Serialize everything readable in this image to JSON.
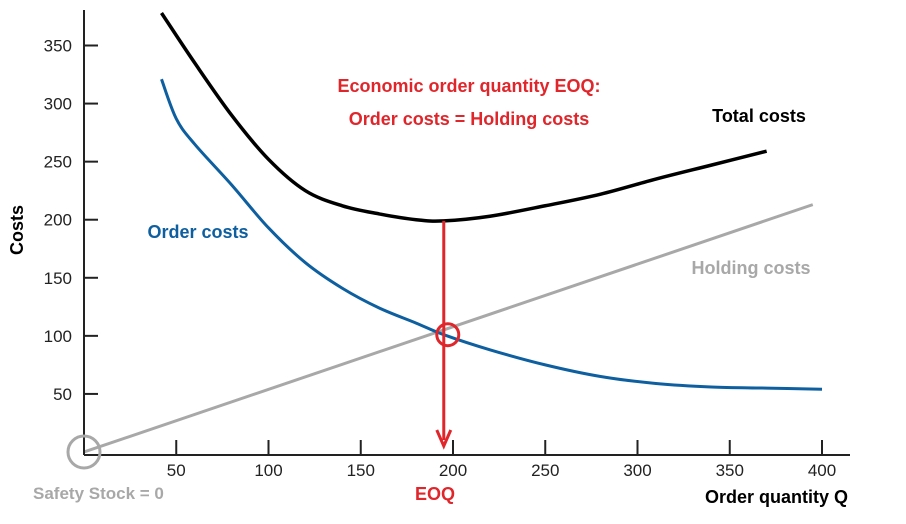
{
  "chart_data": {
    "type": "line",
    "xlabel": "Order quantity Q",
    "ylabel": "Costs",
    "xlim": [
      0,
      400
    ],
    "ylim": [
      0,
      370
    ],
    "xticks": [
      50,
      100,
      150,
      200,
      250,
      300,
      350,
      400
    ],
    "yticks": [
      50,
      100,
      150,
      200,
      250,
      300,
      350
    ],
    "grid": false,
    "series": [
      {
        "name": "Total costs",
        "color": "#000000",
        "x": [
          42,
          60,
          80,
          100,
          120,
          140,
          160,
          180,
          195,
          220,
          250,
          280,
          310,
          340,
          370
        ],
        "y": [
          378,
          335,
          290,
          252,
          225,
          212,
          205,
          200,
          199,
          203,
          212,
          222,
          235,
          247,
          259
        ]
      },
      {
        "name": "Order costs",
        "color": "#0e5fa0",
        "x": [
          42,
          50,
          60,
          80,
          100,
          120,
          140,
          160,
          180,
          195,
          220,
          250,
          280,
          310,
          340,
          370,
          400
        ],
        "y": [
          321,
          287,
          265,
          230,
          193,
          163,
          141,
          124,
          111,
          101,
          88,
          75,
          65,
          59,
          56,
          55,
          54
        ]
      },
      {
        "name": "Holding costs",
        "color": "#a8a8a8",
        "x": [
          0,
          395
        ],
        "y": [
          0,
          213
        ]
      }
    ],
    "annotations": {
      "title_line1": "Economic order quantity EOQ:",
      "title_line2": "Order costs = Holding costs",
      "eoq_label": "EOQ",
      "safety_stock_label": "Safety Stock = 0",
      "eoq_x": 195,
      "eoq_y": 101,
      "total_min_y": 199
    },
    "colors": {
      "annotation": "#e0262b",
      "axis": "#222222",
      "safety_circle": "#a8a8a8"
    }
  }
}
